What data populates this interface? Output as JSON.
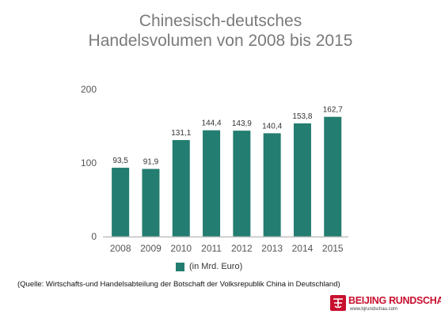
{
  "header": {
    "title_line1": "Chinesisch-deutsches",
    "title_line2": "Handelsvolumen von 2008 bis 2015"
  },
  "colors": {
    "bar": "#237d70",
    "axis": "#bfbfbf",
    "logo": "#c8102e"
  },
  "chart_data": {
    "type": "bar",
    "title": "Chinesisch-deutsches Handelsvolumen von 2008 bis 2015",
    "xlabel": "",
    "ylabel": "",
    "categories": [
      "2008",
      "2009",
      "2010",
      "2011",
      "2012",
      "2013",
      "2014",
      "2015"
    ],
    "values": [
      93.5,
      91.9,
      131.1,
      144.4,
      143.9,
      140.4,
      153.8,
      162.7
    ],
    "value_labels": [
      "93,5",
      "91,9",
      "131,1",
      "144,4",
      "143,9",
      "140,4",
      "153,8",
      "162,7"
    ],
    "ylim": [
      0,
      200
    ],
    "yticks": [
      0,
      100,
      200
    ],
    "grid": false,
    "legend": {
      "position": "bottom-center",
      "entries": [
        "(in Mrd. Euro)"
      ]
    }
  },
  "footer": {
    "source": "(Quelle: Wirtschafts-und Handelsabteilung der Botschaft der Volksrepublik China in Deutschland)"
  },
  "logo": {
    "name": "BEIJING RUNDSCHAU",
    "url": "www.bjrundschau.com",
    "icon": "beijing-rundschau-seal-icon"
  }
}
